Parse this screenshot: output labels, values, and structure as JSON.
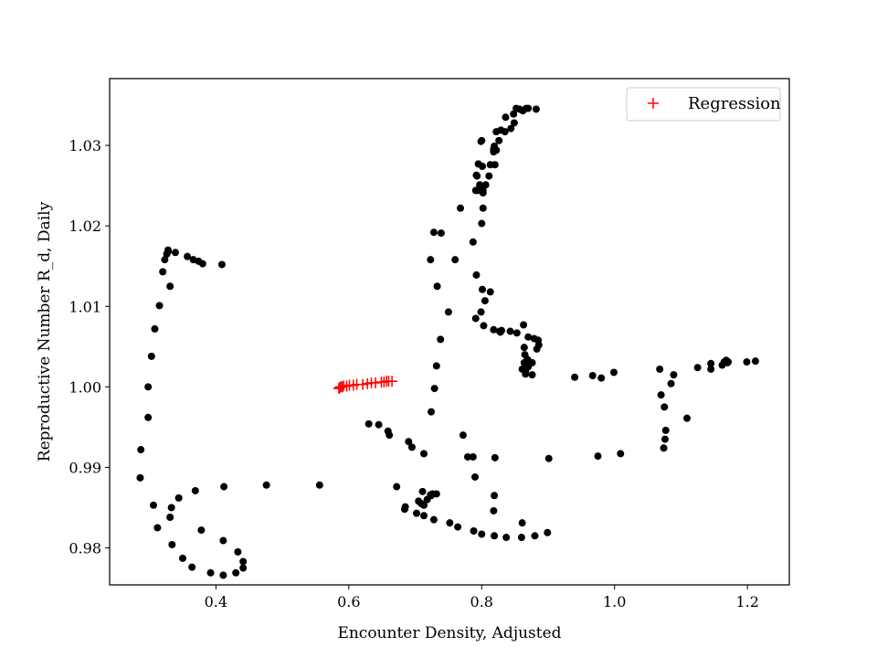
{
  "chart_data": {
    "type": "scatter",
    "title": "",
    "xlabel": "Encounter Density, Adjusted",
    "ylabel": "Reproductive Number R_d, Daily",
    "xlim": [
      0.24,
      1.263
    ],
    "ylim": [
      0.9754,
      1.0383
    ],
    "x_ticks": [
      0.4,
      0.6,
      0.8,
      1.0,
      1.2
    ],
    "x_tick_labels": [
      "0.4",
      "0.6",
      "0.8",
      "1.0",
      "1.2"
    ],
    "y_ticks": [
      0.98,
      0.99,
      1.0,
      1.01,
      1.02,
      1.03
    ],
    "y_tick_labels": [
      "0.98",
      "0.99",
      "1.00",
      "1.01",
      "1.02",
      "1.03"
    ],
    "grid": false,
    "legend": {
      "position": "top-right",
      "entries": [
        {
          "label": "Regression",
          "color": "#ff0000",
          "marker": "plus"
        }
      ]
    },
    "series": [
      {
        "color": "#000000",
        "marker": "circle",
        "x": [
          0.409,
          0.38,
          0.374,
          0.366,
          0.357,
          0.339,
          0.328,
          0.328,
          0.326,
          0.323,
          0.32,
          0.331,
          0.315,
          0.308,
          0.303,
          0.298,
          0.298,
          0.287,
          0.286,
          0.306,
          0.312,
          0.333,
          0.334,
          0.331,
          0.344,
          0.35,
          0.369,
          0.364,
          0.378,
          0.392,
          0.411,
          0.43,
          0.411,
          0.433,
          0.441,
          0.441,
          0.412,
          0.476,
          0.556
        ],
        "y": [
          1.0152,
          1.0153,
          1.0156,
          1.0158,
          1.0162,
          1.0167,
          1.017,
          1.0168,
          1.0165,
          1.0158,
          1.0143,
          1.0125,
          1.0101,
          1.0072,
          1.0038,
          1.0,
          0.9962,
          0.9922,
          0.9887,
          0.9853,
          0.9825,
          0.985,
          0.9804,
          0.9838,
          0.9862,
          0.9787,
          0.9871,
          0.9776,
          0.9822,
          0.9769,
          0.9766,
          0.9769,
          0.9809,
          0.9795,
          0.9783,
          0.9775,
          0.9876,
          0.9878,
          0.9878
        ]
      },
      {
        "color": "#000000",
        "marker": "circle",
        "x": [
          0.63,
          0.645,
          0.659,
          0.661,
          0.69,
          0.695,
          0.713,
          0.672,
          0.711,
          0.718,
          0.724,
          0.726,
          0.723,
          0.732,
          0.705,
          0.713,
          0.709,
          0.684,
          0.685,
          0.702,
          0.713,
          0.728,
          0.752,
          0.764,
          0.788,
          0.8,
          0.819,
          0.837,
          0.86,
          0.88,
          0.899,
          0.861,
          0.818,
          0.819,
          0.79,
          0.787,
          0.779,
          0.772,
          0.82,
          0.901,
          0.724,
          0.729,
          0.732,
          0.738,
          0.75,
          0.733,
          0.723,
          0.728,
          0.739,
          0.76,
          0.768,
          0.787,
          0.791,
          0.799,
          0.805,
          0.813,
          0.792,
          0.801,
          0.803,
          0.818,
          0.828,
          0.827,
          0.83,
          0.843,
          0.853,
          0.864,
          0.865,
          0.864,
          0.869,
          0.87,
          0.866,
          0.866,
          0.876,
          0.883,
          0.886,
          0.885,
          0.879,
          0.87,
          0.863,
          0.869,
          0.876,
          0.861,
          0.794,
          0.792,
          0.795,
          0.797,
          0.802,
          0.8,
          0.813,
          0.818,
          0.818,
          0.819,
          0.822,
          0.829,
          0.836,
          0.848,
          0.857,
          0.867,
          0.87,
          0.882,
          0.862,
          0.852,
          0.849,
          0.844,
          0.835,
          0.826,
          0.822,
          0.82,
          0.811,
          0.806,
          0.802,
          0.8,
          0.799,
          0.791,
          0.793,
          0.802,
          0.801,
          0.94,
          0.967,
          0.98,
          0.999,
          1.068,
          1.089,
          1.085,
          1.07,
          1.075,
          1.077,
          1.076,
          1.074,
          1.109,
          1.009,
          0.975,
          1.125,
          1.145,
          1.145,
          1.162,
          1.165,
          1.168,
          1.171,
          1.17,
          1.199,
          1.212
        ],
        "y": [
          0.9954,
          0.9953,
          0.9945,
          0.994,
          0.9932,
          0.9925,
          0.9917,
          0.9876,
          0.987,
          0.986,
          0.9865,
          0.9867,
          0.9866,
          0.9867,
          0.9858,
          0.9853,
          0.9855,
          0.9848,
          0.9851,
          0.9843,
          0.984,
          0.9835,
          0.9831,
          0.9826,
          0.9821,
          0.9817,
          0.9815,
          0.9813,
          0.9813,
          0.9815,
          0.9819,
          0.9831,
          0.9846,
          0.9865,
          0.9888,
          0.9913,
          0.9913,
          0.994,
          0.9912,
          0.9911,
          0.9969,
          0.9998,
          1.0026,
          1.0059,
          1.0093,
          1.0125,
          1.0158,
          1.0192,
          1.0191,
          1.0158,
          1.0222,
          1.018,
          1.0085,
          1.0093,
          1.0107,
          1.0118,
          1.0139,
          1.0121,
          1.0076,
          1.0071,
          1.0068,
          1.0069,
          1.007,
          1.0069,
          1.0067,
          1.0049,
          1.004,
          1.003,
          1.0032,
          1.0025,
          1.002,
          1.0016,
          1.0015,
          1.0047,
          1.0052,
          1.0058,
          1.006,
          1.0062,
          1.0077,
          1.0034,
          1.003,
          1.0022,
          1.0244,
          1.0263,
          1.0277,
          1.0251,
          1.0222,
          1.0203,
          1.0276,
          1.0292,
          1.0295,
          1.0299,
          1.0317,
          1.0319,
          1.0335,
          1.0339,
          1.0345,
          1.0346,
          1.0346,
          1.0345,
          1.0343,
          1.0346,
          1.0328,
          1.0321,
          1.0317,
          1.0306,
          1.0294,
          1.0276,
          1.0262,
          1.0251,
          1.0241,
          1.0306,
          1.0305,
          1.0244,
          1.0262,
          1.0244,
          1.0274,
          1.0012,
          1.0014,
          1.0011,
          1.0018,
          1.0022,
          1.0015,
          1.0004,
          0.999,
          0.9975,
          0.9946,
          0.9935,
          0.9924,
          0.9961,
          0.9917,
          0.9914,
          1.0024,
          1.0029,
          1.0022,
          1.0027,
          1.0031,
          1.0033,
          1.0031,
          1.003,
          1.0031,
          1.0032
        ]
      },
      {
        "name": "Regression",
        "color": "#ff0000",
        "marker": "plus",
        "x": [
          0.585,
          0.586,
          0.588,
          0.59,
          0.592,
          0.597,
          0.601,
          0.607,
          0.612,
          0.621,
          0.628,
          0.634,
          0.64,
          0.649,
          0.653,
          0.657,
          0.66,
          0.665
        ],
        "y": [
          0.9998,
          0.9999,
          1.0,
          1.0,
          1.0001,
          1.0001,
          1.0002,
          1.0002,
          1.0003,
          1.0003,
          1.0004,
          1.0005,
          1.0005,
          1.0006,
          1.0006,
          1.0007,
          1.0007,
          1.0007
        ]
      }
    ]
  }
}
